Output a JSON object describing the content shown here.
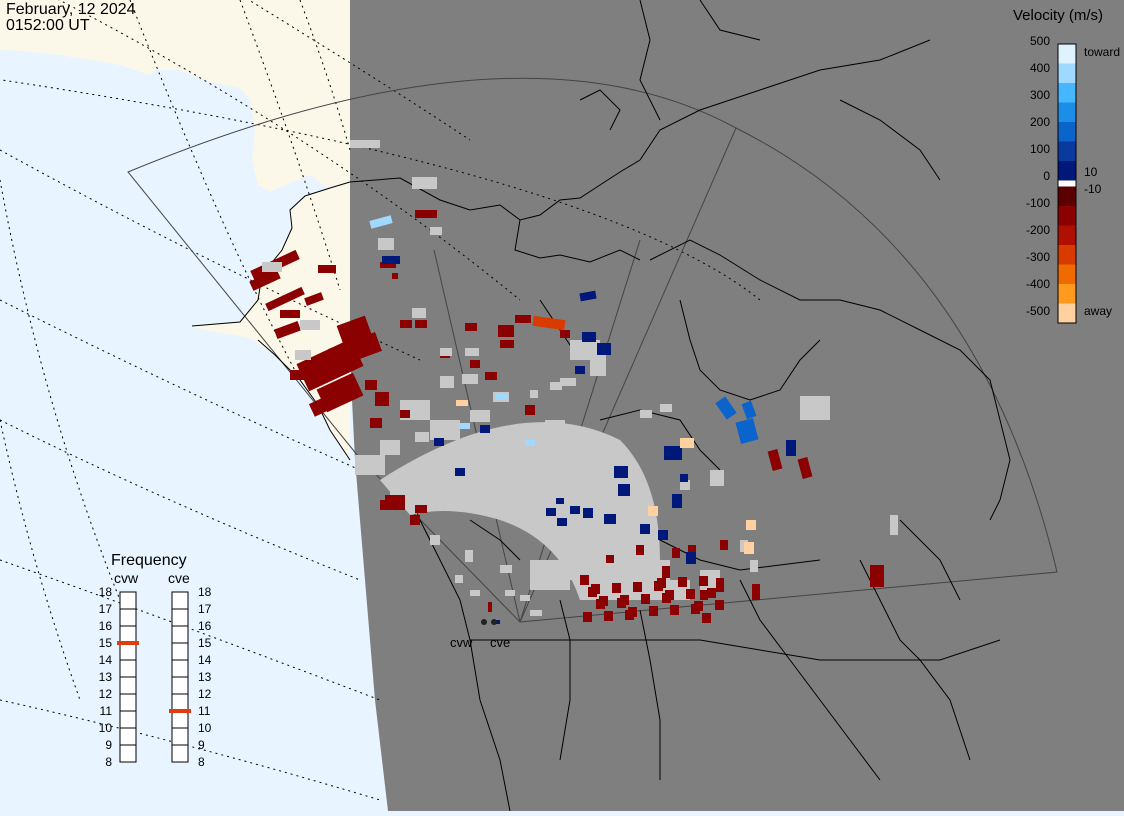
{
  "header": {
    "date": "February, 12 2024",
    "time": "0152:00 UT"
  },
  "velocity_scale": {
    "title": "Velocity (m/s)",
    "ticks": [
      "500",
      "400",
      "300",
      "200",
      "100",
      "0",
      "-100",
      "-200",
      "-300",
      "-400",
      "-500"
    ],
    "side_labels": {
      "toward": "toward",
      "away": "away",
      "pos_threshold": "10",
      "neg_threshold": "-10"
    },
    "colors": [
      "#dff3ff",
      "#9fd9ff",
      "#45b6ff",
      "#1b8ee8",
      "#0b63cc",
      "#0a3a9d",
      "#00187a",
      "#5a0000",
      "#8b0000",
      "#b01000",
      "#d83a00",
      "#ef6a00",
      "#ff9a1f",
      "#ffd0a0"
    ]
  },
  "frequency": {
    "title": "Frequency",
    "radars": [
      {
        "name": "cvw",
        "value_mhz": 15
      },
      {
        "name": "cve",
        "value_mhz": 11
      }
    ],
    "ticks": [
      "18",
      "17",
      "16",
      "15",
      "14",
      "13",
      "12",
      "11",
      "10",
      "9",
      "8"
    ],
    "marker_color": "#e03c10"
  },
  "sites": {
    "cvw": "cvw",
    "cve": "cve"
  },
  "map_colors": {
    "ocean": "#e8f4ff",
    "land_outside": "#fbf8ea",
    "land_inside": "#7f7f7f",
    "ground_scatter": "#c8c8c8"
  }
}
